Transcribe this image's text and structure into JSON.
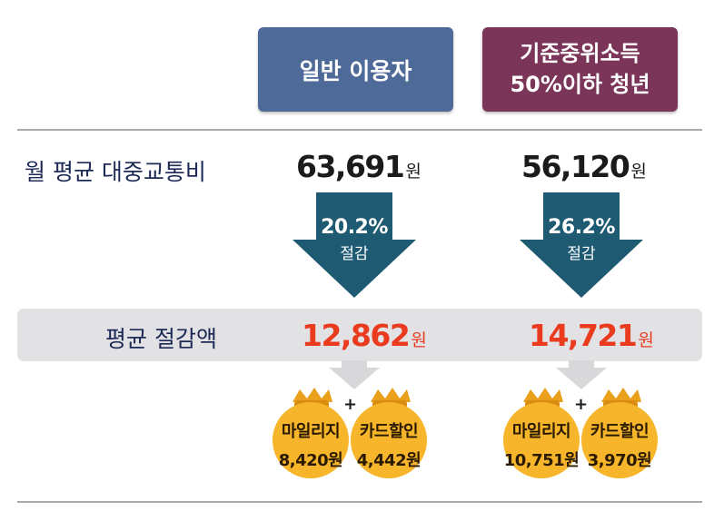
{
  "columns": {
    "general": {
      "title": "일반 이용자"
    },
    "youth": {
      "title_line1": "기준중위소득",
      "title_line2": "50%이하 청년"
    }
  },
  "rows": {
    "monthly_cost_label": "월 평균 대중교통비",
    "avg_saving_label": "평균 절감액"
  },
  "unit": "원",
  "general": {
    "monthly_cost": "63,691",
    "reduction_pct": "20.2%",
    "reduction_label": "절감",
    "avg_saving": "12,862",
    "mileage_label": "마일리지",
    "mileage_value": "8,420원",
    "card_label": "카드할인",
    "card_value": "4,442원"
  },
  "youth": {
    "monthly_cost": "56,120",
    "reduction_pct": "26.2%",
    "reduction_label": "절감",
    "avg_saving": "14,721",
    "mileage_label": "마일리지",
    "mileage_value": "10,751원",
    "card_label": "카드할인",
    "card_value": "3,970원"
  },
  "plus_sign": "+",
  "colors": {
    "general_header": "#4e6a99",
    "youth_header": "#7a3558",
    "arrow": "#1f5a73",
    "saving_text": "#ea3b1e",
    "coin": "#f6b52a",
    "band": "#e2e2e5"
  },
  "icons": {
    "reduction_arrow": "down-arrow-icon",
    "pointer_arrow": "gray-down-arrow-icon",
    "coin_bag": "money-bag-icon"
  }
}
